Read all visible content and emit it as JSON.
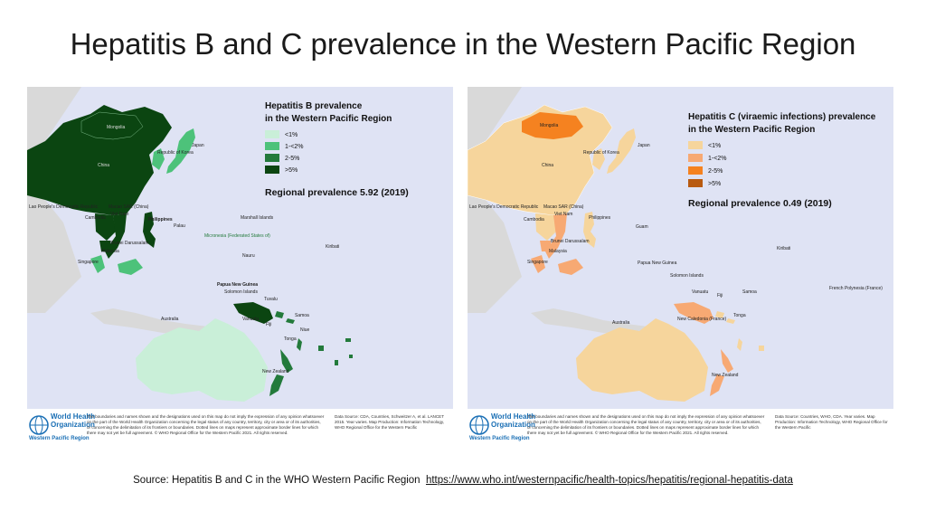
{
  "title": "Hepatitis B and C prevalence in the Western Pacific Region",
  "colors": {
    "ocean": "#dfe3f4",
    "land_outside": "#d9d9d9",
    "hepb_lt1": "#c9efd8",
    "hepb_1_2": "#4dc27a",
    "hepb_2_5": "#237a3b",
    "hepb_gt5": "#0b4511",
    "hepc_lt1": "#f6d59c",
    "hepc_1_2": "#f7a973",
    "hepc_2_5": "#f58220",
    "hepc_gt5": "#b85a10",
    "who_blue": "#1a6fb5"
  },
  "hepb": {
    "legend_title_1": "Hepatitis B prevalence",
    "legend_title_2": "in the Western Pacific Region",
    "legend": [
      "<1%",
      "1-<2%",
      "2-5%",
      ">5%"
    ],
    "regional_prevalence": "Regional prevalence 5.92 (2019)",
    "labels": {
      "mongolia": "Mongolia",
      "china": "China",
      "korea": "Republic of Korea",
      "japan": "Japan",
      "lao": "Lao People's Democratic Republic",
      "macao": "Macao SAR (China)",
      "cambodia": "Cambodia",
      "vietnam": "Viet Nam",
      "philippines": "Philippines",
      "brunei": "Brunei Darussalam",
      "malaysia": "Malaysia",
      "singapore": "Singapore",
      "palau": "Palau",
      "micronesia": "Micronesia (Federated States of)",
      "marshall": "Marshall Islands",
      "kiribati": "Kiribati",
      "nauru": "Nauru",
      "png": "Papua New Guinea",
      "solomon": "Solomon Islands",
      "tuvalu": "Tuvalu",
      "vanuatu": "Vanuatu",
      "fiji": "Fiji",
      "samoa": "Samoa",
      "niue": "Niue",
      "tonga": "Tonga",
      "australia": "Australia",
      "nz": "New Zealand"
    },
    "disclaimer": "The boundaries and names shown and the designations used on this map do not imply the expression of any opinion whatsoever on the part of the World Health Organization concerning the legal status of any country, territory, city or area or of its authorities, or concerning the delimitation of its frontiers or boundaries. Dotted lines on maps represent approximate border lines for which there may not yet be full agreement. © WHO Regional Office for the Western Pacific 2021. All rights reserved.",
    "data_source": "Data Source: CDA, Countries, Schweitzer A, et al. LANCET 2015. Year varies. Map Production: Information Technology, WHO Regional Office for the Western Pacific"
  },
  "hepc": {
    "legend_title_1": "Hepatitis C (viraemic infections) prevalence",
    "legend_title_2": "in the Western Pacific Region",
    "legend": [
      "<1%",
      "1-<2%",
      "2-5%",
      ">5%"
    ],
    "regional_prevalence": "Regional prevalence 0.49 (2019)",
    "labels": {
      "mongolia": "Mongolia",
      "china": "China",
      "korea": "Republic of Korea",
      "japan": "Japan",
      "lao": "Lao People's Democratic Republic",
      "macao": "Macao SAR (China)",
      "cambodia": "Cambodia",
      "vietnam": "Viet Nam",
      "philippines": "Philippines",
      "guam": "Guam",
      "brunei": "Brunei Darussalam",
      "malaysia": "Malaysia",
      "singapore": "Singapore",
      "kiribati": "Kiribati",
      "png": "Papua New Guinea",
      "solomon": "Solomon Islands",
      "vanuatu": "Vanuatu",
      "fiji": "Fiji",
      "samoa": "Samoa",
      "tonga": "Tonga",
      "french_polynesia": "French Polynesia (France)",
      "new_caledonia": "New Caledonia (France)",
      "australia": "Australia",
      "nz": "New Zealand"
    },
    "disclaimer": "The boundaries and names shown and the designations used on this map do not imply the expression of any opinion whatsoever on the part of the World Health Organization concerning the legal status of any country, territory, city or area or of its authorities, or concerning the delimitation of its frontiers or boundaries. Dotted lines on maps represent approximate border lines for which there may not yet be full agreement. © WHO Regional Office for the Western Pacific 2021. All rights reserved.",
    "data_source": "Data Source: Countries, WHO, CDA. Year varies. Map Production: Information Technology, WHO Regional Office for the Western Pacific"
  },
  "who": {
    "name_line1": "World Health",
    "name_line2": "Organization",
    "region": "Western Pacific Region"
  },
  "source": {
    "prefix": "Source:  Hepatitis B and C in the  WHO Western  Pacific Region",
    "url": "https://www.who.int/westernpacific/health-topics/hepatitis/regional-hepatitis-data"
  }
}
